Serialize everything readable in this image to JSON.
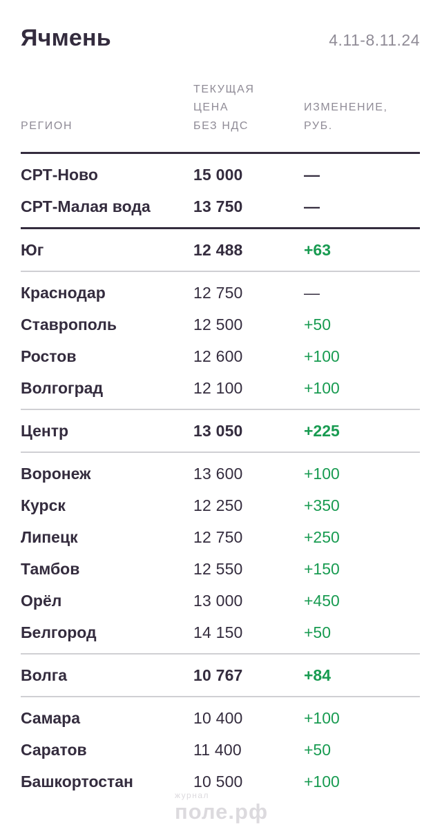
{
  "header": {
    "title": "Ячмень",
    "period": "4.11-8.11.24"
  },
  "watermark": {
    "small": "журнал",
    "brand": "поле.рф"
  },
  "colors": {
    "text_dark": "#342c3e",
    "muted_gray": "#8f8b96",
    "accent_green": "#189b51",
    "divider_light": "#cfcfd3",
    "divider_dark": "#342c3e",
    "watermark_gray": "#dcdade"
  },
  "chart_data": {
    "type": "table",
    "title": "Ячмень",
    "period": "4.11-8.11.24",
    "columns": [
      "РЕГИОН",
      "ТЕКУЩАЯ\nЦЕНА\nБЕЗ НДС",
      "ИЗМЕНЕНИЕ,\nРУБ."
    ],
    "sections": [
      {
        "divider": "none",
        "rows": [
          {
            "region": "СРТ-Ново",
            "price": "15 000",
            "price_value": 15000,
            "change": "—",
            "change_value": null,
            "emphasis": true,
            "positive": false
          },
          {
            "region": "СРТ-Малая вода",
            "price": "13 750",
            "price_value": 13750,
            "change": "—",
            "change_value": null,
            "emphasis": true,
            "positive": false
          }
        ]
      },
      {
        "divider": "dark",
        "rows": [
          {
            "region": "Юг",
            "price": "12 488",
            "price_value": 12488,
            "change": "+63",
            "change_value": 63,
            "emphasis": true,
            "positive": true
          }
        ]
      },
      {
        "divider": "light",
        "rows": [
          {
            "region": "Краснодар",
            "price": "12 750",
            "price_value": 12750,
            "change": "—",
            "change_value": null,
            "emphasis": false,
            "positive": false
          },
          {
            "region": "Ставрополь",
            "price": "12 500",
            "price_value": 12500,
            "change": "+50",
            "change_value": 50,
            "emphasis": false,
            "positive": true
          },
          {
            "region": "Ростов",
            "price": "12 600",
            "price_value": 12600,
            "change": "+100",
            "change_value": 100,
            "emphasis": false,
            "positive": true
          },
          {
            "region": "Волгоград",
            "price": "12 100",
            "price_value": 12100,
            "change": "+100",
            "change_value": 100,
            "emphasis": false,
            "positive": true
          }
        ]
      },
      {
        "divider": "light",
        "rows": [
          {
            "region": "Центр",
            "price": "13 050",
            "price_value": 13050,
            "change": "+225",
            "change_value": 225,
            "emphasis": true,
            "positive": true
          }
        ]
      },
      {
        "divider": "light",
        "rows": [
          {
            "region": "Воронеж",
            "price": "13 600",
            "price_value": 13600,
            "change": "+100",
            "change_value": 100,
            "emphasis": false,
            "positive": true
          },
          {
            "region": "Курск",
            "price": "12 250",
            "price_value": 12250,
            "change": "+350",
            "change_value": 350,
            "emphasis": false,
            "positive": true
          },
          {
            "region": "Липецк",
            "price": "12 750",
            "price_value": 12750,
            "change": "+250",
            "change_value": 250,
            "emphasis": false,
            "positive": true
          },
          {
            "region": "Тамбов",
            "price": "12 550",
            "price_value": 12550,
            "change": "+150",
            "change_value": 150,
            "emphasis": false,
            "positive": true
          },
          {
            "region": "Орёл",
            "price": "13 000",
            "price_value": 13000,
            "change": "+450",
            "change_value": 450,
            "emphasis": false,
            "positive": true
          },
          {
            "region": "Белгород",
            "price": "14 150",
            "price_value": 14150,
            "change": "+50",
            "change_value": 50,
            "emphasis": false,
            "positive": true
          }
        ]
      },
      {
        "divider": "light",
        "rows": [
          {
            "region": "Волга",
            "price": "10 767",
            "price_value": 10767,
            "change": "+84",
            "change_value": 84,
            "emphasis": true,
            "positive": true
          }
        ]
      },
      {
        "divider": "light",
        "rows": [
          {
            "region": "Самара",
            "price": "10 400",
            "price_value": 10400,
            "change": "+100",
            "change_value": 100,
            "emphasis": false,
            "positive": true
          },
          {
            "region": "Саратов",
            "price": "11 400",
            "price_value": 11400,
            "change": "+50",
            "change_value": 50,
            "emphasis": false,
            "positive": true
          },
          {
            "region": "Башкортостан",
            "price": "10 500",
            "price_value": 10500,
            "change": "+100",
            "change_value": 100,
            "emphasis": false,
            "positive": true
          }
        ]
      }
    ]
  }
}
